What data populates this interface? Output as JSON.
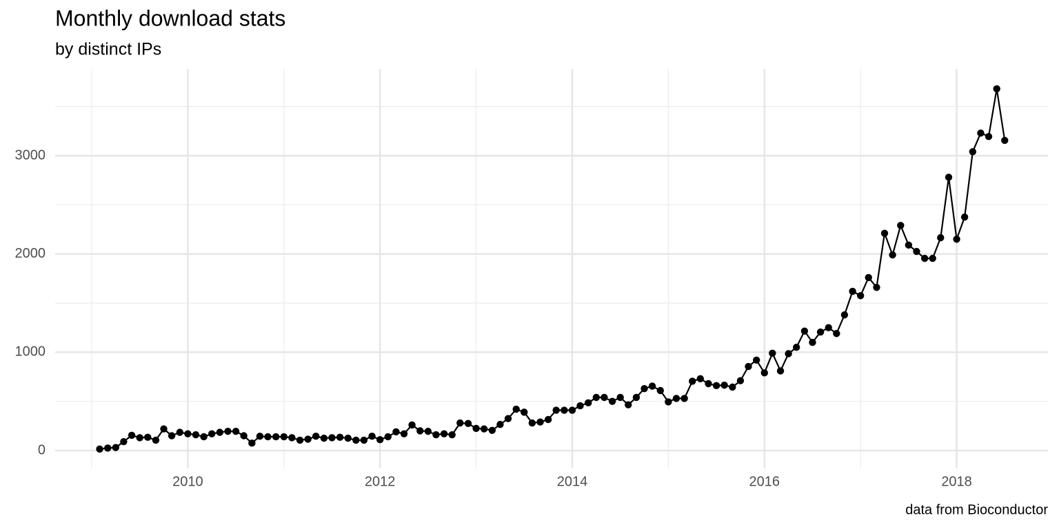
{
  "chart_data": {
    "type": "line",
    "title": "Monthly download stats",
    "subtitle": "by distinct IPs",
    "caption": "data from Bioconductor",
    "x": [
      2009.083,
      2009.167,
      2009.25,
      2009.333,
      2009.417,
      2009.5,
      2009.583,
      2009.667,
      2009.75,
      2009.833,
      2009.917,
      2010,
      2010.083,
      2010.167,
      2010.25,
      2010.333,
      2010.417,
      2010.5,
      2010.583,
      2010.667,
      2010.75,
      2010.833,
      2010.917,
      2011,
      2011.083,
      2011.167,
      2011.25,
      2011.333,
      2011.417,
      2011.5,
      2011.583,
      2011.667,
      2011.75,
      2011.833,
      2011.917,
      2012,
      2012.083,
      2012.167,
      2012.25,
      2012.333,
      2012.417,
      2012.5,
      2012.583,
      2012.667,
      2012.75,
      2012.833,
      2012.917,
      2013,
      2013.083,
      2013.167,
      2013.25,
      2013.333,
      2013.417,
      2013.5,
      2013.583,
      2013.667,
      2013.75,
      2013.833,
      2013.917,
      2014,
      2014.083,
      2014.167,
      2014.25,
      2014.333,
      2014.417,
      2014.5,
      2014.583,
      2014.667,
      2014.75,
      2014.833,
      2014.917,
      2015,
      2015.083,
      2015.167,
      2015.25,
      2015.333,
      2015.417,
      2015.5,
      2015.583,
      2015.667,
      2015.75,
      2015.833,
      2015.917,
      2016,
      2016.083,
      2016.167,
      2016.25,
      2016.333,
      2016.417,
      2016.5,
      2016.583,
      2016.667,
      2016.75,
      2016.833,
      2016.917,
      2017,
      2017.083,
      2017.167,
      2017.25,
      2017.333,
      2017.417,
      2017.5,
      2017.583,
      2017.667,
      2017.75,
      2017.833,
      2017.917,
      2018,
      2018.083,
      2018.167,
      2018.25,
      2018.333,
      2018.417,
      2018.5
    ],
    "series": [
      {
        "color": "#000000",
        "values": [
          15,
          25,
          30,
          90,
          155,
          130,
          135,
          105,
          220,
          150,
          185,
          170,
          160,
          140,
          170,
          185,
          195,
          195,
          150,
          75,
          145,
          140,
          140,
          140,
          130,
          105,
          115,
          145,
          125,
          130,
          135,
          125,
          105,
          105,
          145,
          110,
          140,
          190,
          170,
          260,
          200,
          195,
          160,
          170,
          160,
          280,
          275,
          225,
          220,
          205,
          265,
          325,
          420,
          390,
          280,
          290,
          315,
          410,
          410,
          410,
          455,
          485,
          540,
          540,
          500,
          540,
          465,
          540,
          630,
          655,
          610,
          495,
          530,
          530,
          705,
          730,
          680,
          660,
          665,
          645,
          710,
          855,
          920,
          790,
          990,
          810,
          985,
          1050,
          1215,
          1100,
          1205,
          1250,
          1190,
          1380,
          1620,
          1575,
          1760,
          1660,
          2210,
          1990,
          2290,
          2090,
          2025,
          1955,
          1955,
          2165,
          2780,
          2150,
          2375,
          3040,
          3230,
          3195,
          3680,
          3155
        ]
      }
    ],
    "xlim": [
      2008.62,
      2018.95
    ],
    "xticks": [
      2010,
      2012,
      2014,
      2016,
      2018
    ],
    "x_minor_ticks": [
      2009,
      2011,
      2013,
      2015,
      2017
    ],
    "ylim": [
      -182,
      3883
    ],
    "yticks": [
      0,
      1000,
      2000,
      3000
    ],
    "y_minor_ticks": [
      500,
      1500,
      2500,
      3500
    ],
    "grid": true
  }
}
